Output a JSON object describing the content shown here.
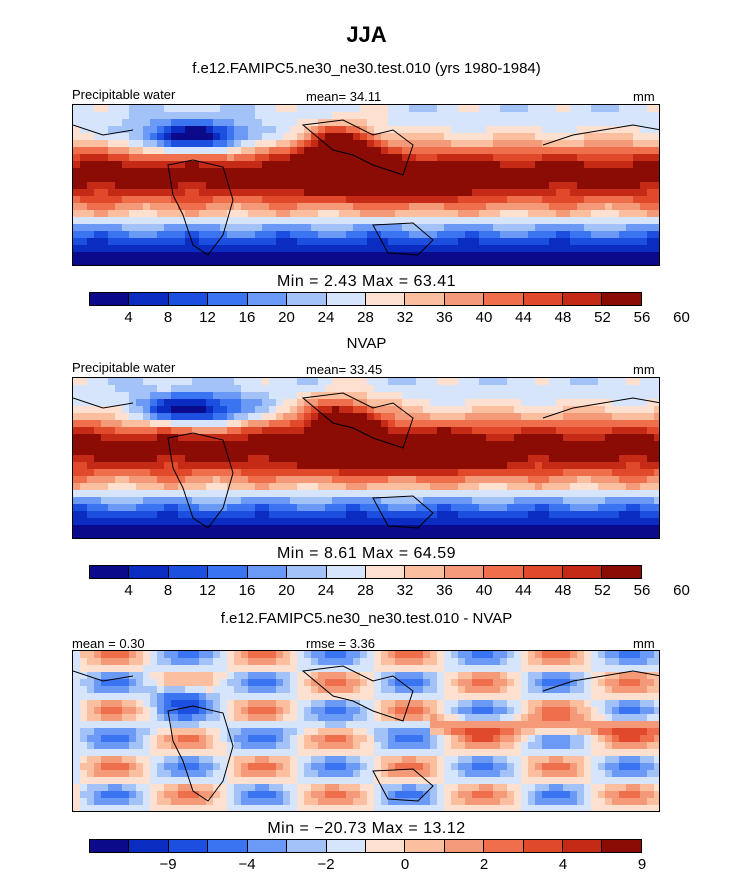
{
  "title": "JJA",
  "colors": [
    "#0a0a8a",
    "#0b2cc0",
    "#1c4fe0",
    "#3b74f0",
    "#6a9af5",
    "#a3c2f7",
    "#d6e5fb",
    "#fde0d0",
    "#fbbfa0",
    "#f59a78",
    "#ef6e4c",
    "#e04a2a",
    "#c52a16",
    "#8a0c05"
  ],
  "land_color": "#000000",
  "chart_data": [
    {
      "type": "heatmap",
      "title": "f.e12.FAMIPC5.ne30_ne30.test.010 (yrs 1980-1984)",
      "left_label": "Precipitable water",
      "center_label": "mean=  34.11",
      "units": "mm",
      "min_max": "Min =     2.43  Max =    63.41",
      "colorbar_ticks": [
        "4",
        "8",
        "12",
        "16",
        "20",
        "24",
        "28",
        "32",
        "36",
        "40",
        "44",
        "48",
        "52",
        "56",
        "60"
      ],
      "levels": [
        4,
        8,
        12,
        16,
        20,
        24,
        28,
        32,
        36,
        40,
        44,
        48,
        52,
        56,
        60
      ]
    },
    {
      "type": "heatmap",
      "title": "NVAP",
      "left_label": "Precipitable water",
      "center_label": "mean=  33.45",
      "units": "mm",
      "min_max": "Min =     8.61  Max =    64.59",
      "colorbar_ticks": [
        "4",
        "8",
        "12",
        "16",
        "20",
        "24",
        "28",
        "32",
        "36",
        "40",
        "44",
        "48",
        "52",
        "56",
        "60"
      ],
      "levels": [
        4,
        8,
        12,
        16,
        20,
        24,
        28,
        32,
        36,
        40,
        44,
        48,
        52,
        56,
        60
      ]
    },
    {
      "type": "heatmap",
      "title": "f.e12.FAMIPC5.ne30_ne30.test.010 - NVAP",
      "left_label": "mean =    0.30",
      "center_label": "rmse =    3.36",
      "units": "mm",
      "min_max": "Min = −20.73  Max =    13.12",
      "colorbar_ticks": [
        "−9",
        "−4",
        "−2",
        "0",
        "2",
        "4",
        "9"
      ],
      "levels": [
        -9,
        -4,
        -2,
        0,
        2,
        4,
        9
      ]
    }
  ]
}
